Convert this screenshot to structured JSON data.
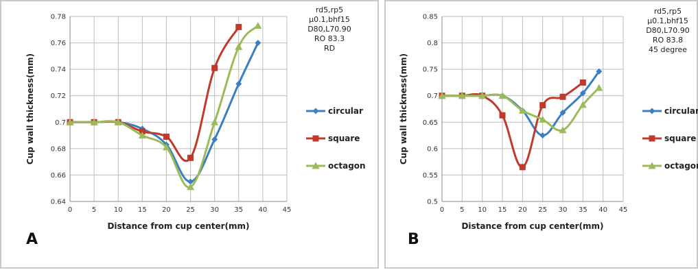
{
  "chart_data": [
    {
      "type": "line",
      "panel_label": "A",
      "xlabel": "Distance from cup center(mm)",
      "ylabel": "Cup wall thickness(mm)",
      "xlim": [
        0,
        45
      ],
      "ylim": [
        0.64,
        0.78
      ],
      "xticks": [
        "0",
        "5",
        "10",
        "15",
        "20",
        "25",
        "30",
        "35",
        "40",
        "45"
      ],
      "yticks": [
        "0.64",
        "0.66",
        "0.68",
        "0.7",
        "0.72",
        "0.74",
        "0.76",
        "0.78"
      ],
      "grid": true,
      "legend_position": "right",
      "annotation": [
        "rd5,rp5",
        "µ0.1,bhf15",
        "D80,L70.90",
        "RO 83.3",
        "RD"
      ],
      "series": [
        {
          "name": "circular",
          "color": "#3a7fc1",
          "marker": "diamond",
          "x": [
            0,
            5,
            10,
            15,
            20,
            25,
            30,
            35,
            39
          ],
          "y": [
            0.7,
            0.7,
            0.7,
            0.695,
            0.683,
            0.655,
            0.687,
            0.729,
            0.76
          ]
        },
        {
          "name": "square",
          "color": "#c0392b",
          "marker": "square",
          "x": [
            0,
            5,
            10,
            15,
            20,
            25,
            30,
            35
          ],
          "y": [
            0.7,
            0.7,
            0.7,
            0.693,
            0.689,
            0.673,
            0.741,
            0.772
          ]
        },
        {
          "name": "octagon",
          "color": "#9bbb59",
          "marker": "triangle",
          "x": [
            0,
            5,
            10,
            15,
            20,
            25,
            30,
            35,
            39
          ],
          "y": [
            0.7,
            0.7,
            0.7,
            0.69,
            0.681,
            0.651,
            0.7,
            0.757,
            0.773
          ]
        }
      ]
    },
    {
      "type": "line",
      "panel_label": "B",
      "xlabel": "Distance from cup center(mm)",
      "ylabel": "Cup wall thickness(mm)",
      "xlim": [
        0,
        45
      ],
      "ylim": [
        0.5,
        0.85
      ],
      "xticks": [
        "0",
        "5",
        "10",
        "15",
        "20",
        "25",
        "30",
        "35",
        "40",
        "45"
      ],
      "yticks": [
        "0.5",
        "0.55",
        "0.6",
        "0.65",
        "0.7",
        "0.75",
        "0.8",
        "0.85"
      ],
      "grid": true,
      "legend_position": "right",
      "annotation": [
        "rd5,rp5",
        "µ0.1,bhf15",
        "D80,L70.90",
        "RO 83.8",
        "45 degree"
      ],
      "series": [
        {
          "name": "circular",
          "color": "#3a7fc1",
          "marker": "diamond",
          "x": [
            0,
            5,
            10,
            15,
            20,
            25,
            30,
            35,
            39
          ],
          "y": [
            0.7,
            0.7,
            0.7,
            0.7,
            0.672,
            0.625,
            0.668,
            0.705,
            0.746
          ]
        },
        {
          "name": "square",
          "color": "#c0392b",
          "marker": "square",
          "x": [
            0,
            5,
            10,
            15,
            20,
            25,
            30,
            35
          ],
          "y": [
            0.7,
            0.7,
            0.7,
            0.663,
            0.565,
            0.682,
            0.698,
            0.725
          ]
        },
        {
          "name": "octagon",
          "color": "#9bbb59",
          "marker": "triangle",
          "x": [
            0,
            5,
            10,
            15,
            20,
            25,
            30,
            35,
            39
          ],
          "y": [
            0.7,
            0.7,
            0.7,
            0.7,
            0.672,
            0.655,
            0.635,
            0.683,
            0.715
          ]
        }
      ]
    }
  ]
}
